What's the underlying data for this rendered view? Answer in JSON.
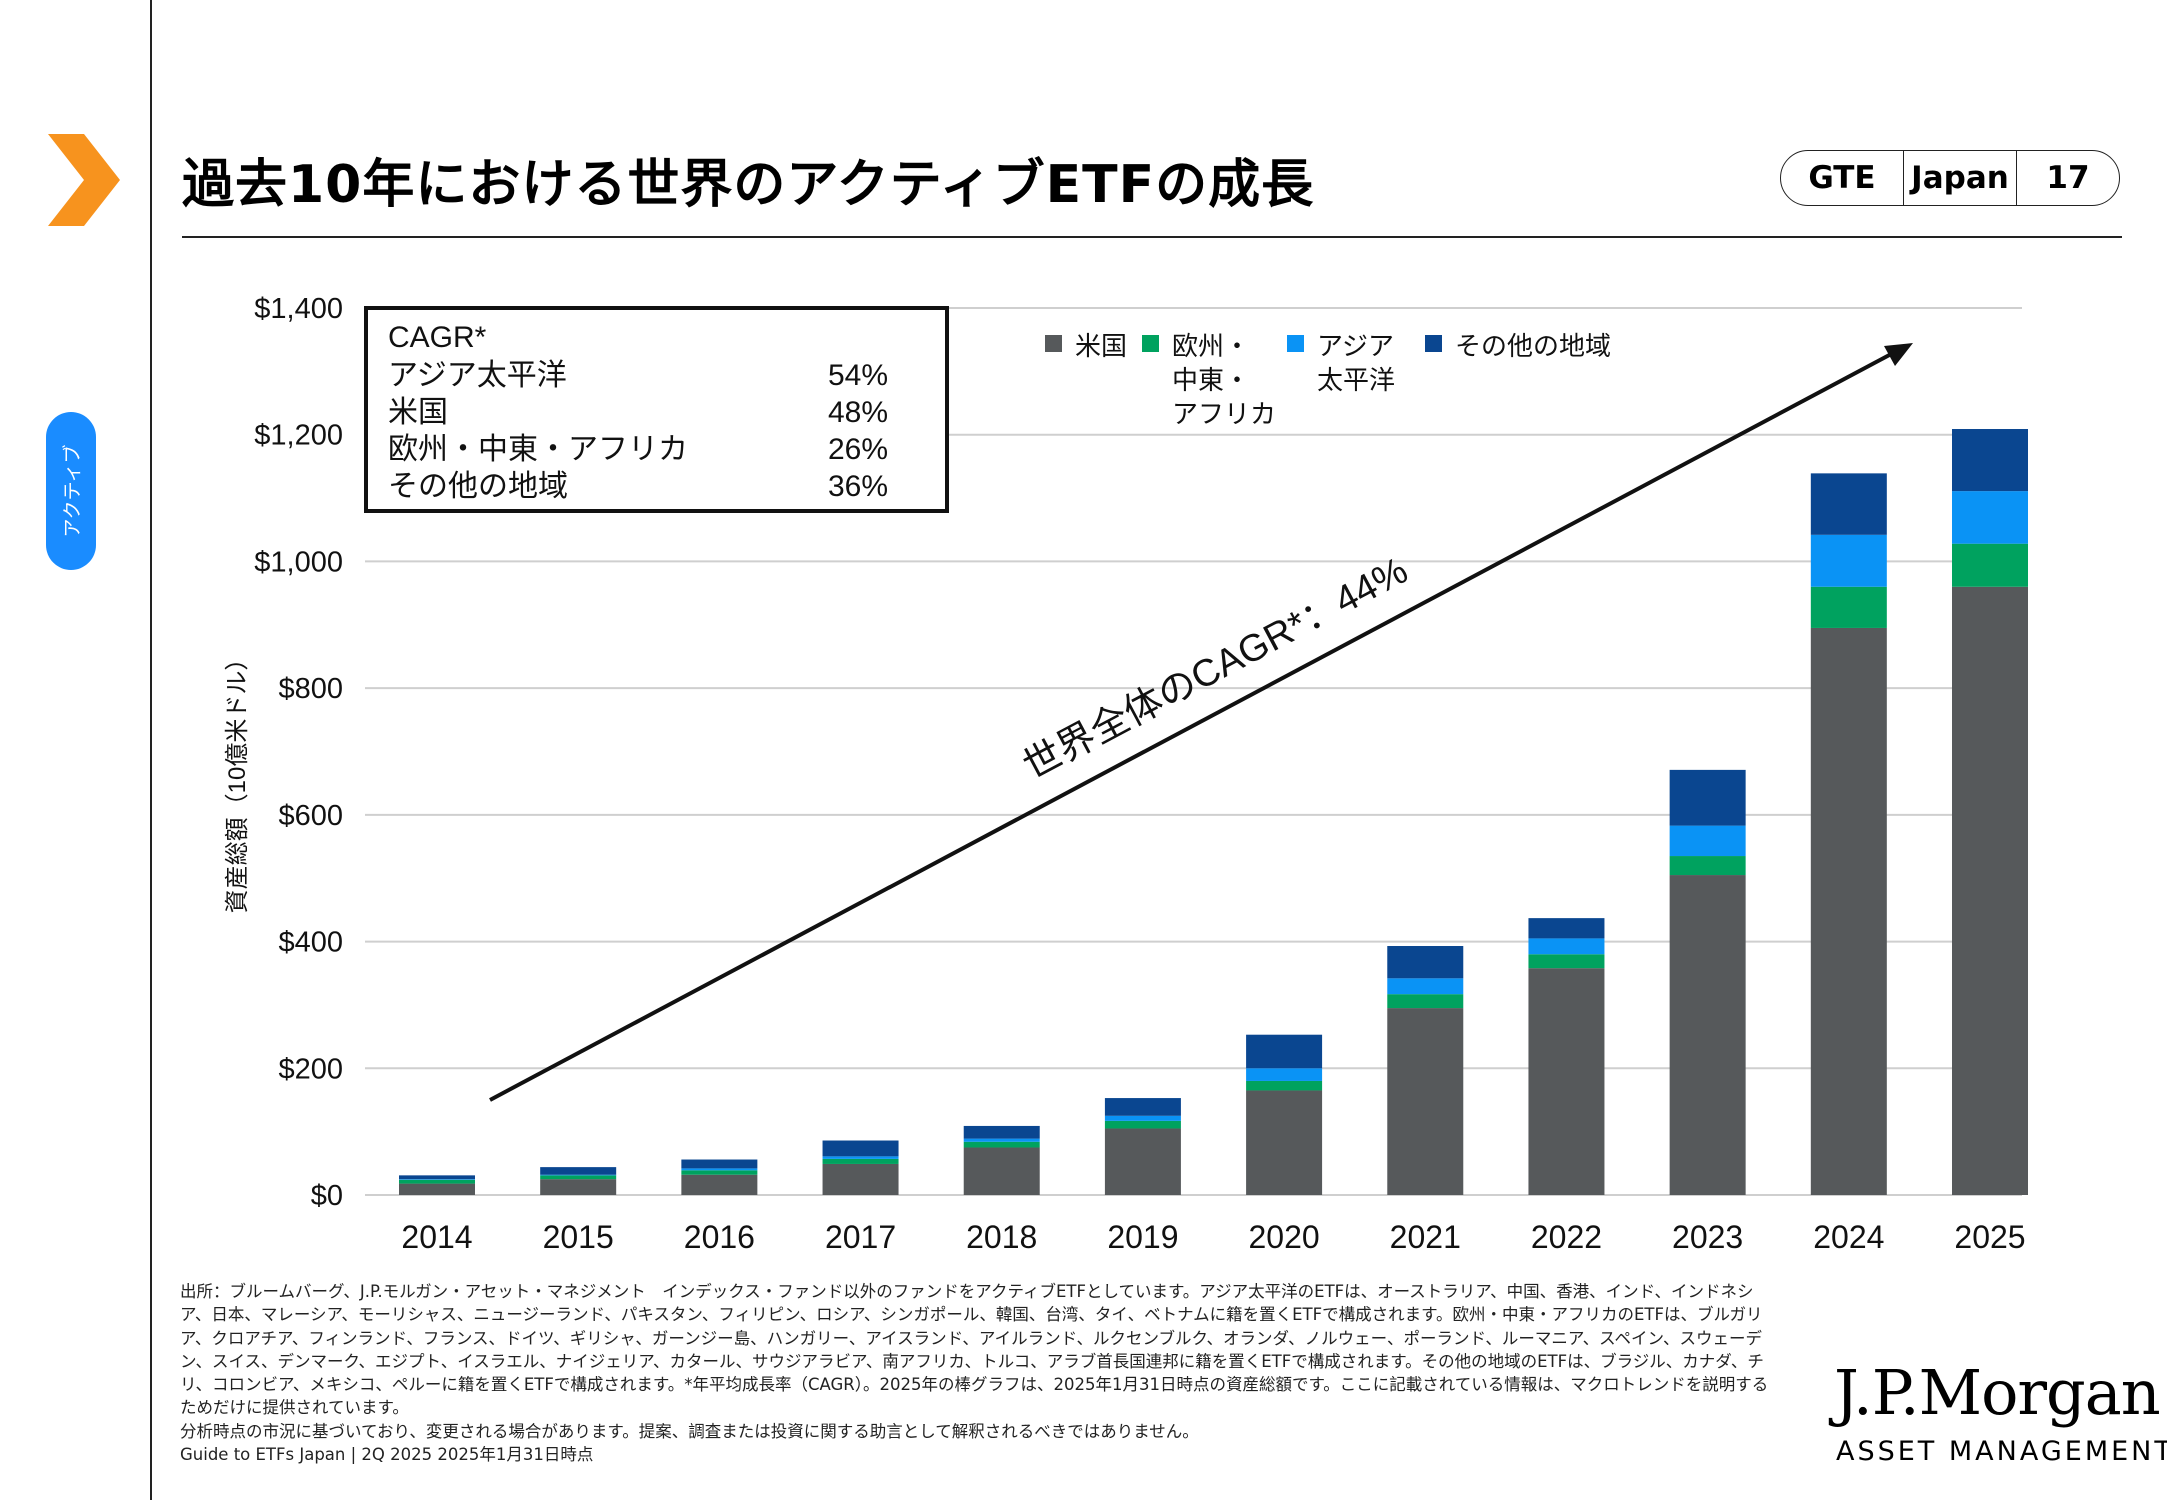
{
  "header": {
    "title": "過去10年における世界のアクティブETFの成長",
    "tags": [
      "GTE",
      "Japan",
      "17"
    ],
    "side_label": "アクティブ"
  },
  "colors": {
    "accent_orange": "#f7931e",
    "tab_blue": "#1a8cff",
    "us": "#56595b",
    "emea": "#00a25f",
    "apac": "#0a93f5",
    "other": "#0a4690"
  },
  "chart_data": {
    "type": "bar",
    "stacked": true,
    "ylabel": "資産総額（10億米ドル）",
    "ylim": [
      0,
      1400
    ],
    "yticks": [
      0,
      200,
      400,
      600,
      800,
      1000,
      1200,
      1400
    ],
    "ytick_labels": [
      "$0",
      "$200",
      "$400",
      "$600",
      "$800",
      "$1,000",
      "$1,200",
      "$1,400"
    ],
    "categories": [
      "2014",
      "2015",
      "2016",
      "2017",
      "2018",
      "2019",
      "2020",
      "2021",
      "2022",
      "2023",
      "2024",
      "2025"
    ],
    "series": [
      {
        "name": "米国",
        "key": "us",
        "values": [
          18,
          25,
          32,
          49,
          75,
          105,
          165,
          295,
          358,
          505,
          895,
          960
        ]
      },
      {
        "name": "欧州・中東・アフリカ",
        "key": "emea",
        "values": [
          6,
          6,
          7,
          8,
          9,
          12,
          15,
          22,
          22,
          30,
          65,
          68
        ]
      },
      {
        "name": "アジア太平洋",
        "key": "apac",
        "values": [
          1,
          1,
          3,
          4,
          5,
          8,
          20,
          25,
          25,
          48,
          82,
          83
        ]
      },
      {
        "name": "その他の地域",
        "key": "other",
        "values": [
          6,
          12,
          14,
          25,
          20,
          28,
          53,
          51,
          32,
          88,
          97,
          98
        ]
      }
    ],
    "legend": [
      "米国",
      "欧州・\n中東・\nアフリカ",
      "アジア\n太平洋",
      "その他の地域"
    ],
    "annotation": "世界全体のCAGR*：44%",
    "cagr_box": {
      "heading": "CAGR*",
      "rows": [
        {
          "label": "アジア太平洋",
          "value": "54%"
        },
        {
          "label": "米国",
          "value": "48%"
        },
        {
          "label": "欧州・中東・アフリカ",
          "value": "26%"
        },
        {
          "label": "その他の地域",
          "value": "36%"
        }
      ]
    }
  },
  "footer": {
    "source": "出所：ブルームバーグ、J.P.モルガン・アセット・マネジメント　インデックス・ファンド以外のファンドをアクティブETFとしています。アジア太平洋のETFは、オーストラリア、中国、香港、インド、インドネシア、日本、マレーシア、モーリシャス、ニュージーランド、パキスタン、フィリピン、ロシア、シンガポール、韓国、台湾、タイ、ベトナムに籍を置くETFで構成されます。欧州・中東・アフリカのETFは、ブルガリア、クロアチア、フィンランド、フランス、ドイツ、ギリシャ、ガーンジー島、ハンガリー、アイスランド、アイルランド、ルクセンブルク、オランダ、ノルウェー、ポーランド、ルーマニア、スペイン、スウェーデン、スイス、デンマーク、エジプト、イスラエル、ナイジェリア、カタール、サウジアラビア、南アフリカ、トルコ、アラブ首長国連邦に籍を置くETFで構成されます。その他の地域のETFは、ブラジル、カナダ、チリ、コロンビア、メキシコ、ペルーに籍を置くETFで構成されます。*年平均成長率（CAGR）。2025年の棒グラフは、2025年1月31日時点の資産総額です。ここに記載されている情報は、マクロトレンドを説明するためだけに提供されています。",
    "disclaimer": "分析時点の市況に基づいており、変更される場合があります。提案、調査または投資に関する助言として解釈されるべきではありません。",
    "guide": "Guide to ETFs Japan | 2Q 2025 2025年1月31日時点"
  },
  "logo": {
    "name": "J.P.Morgan",
    "sub": "ASSET MANAGEMENT"
  }
}
